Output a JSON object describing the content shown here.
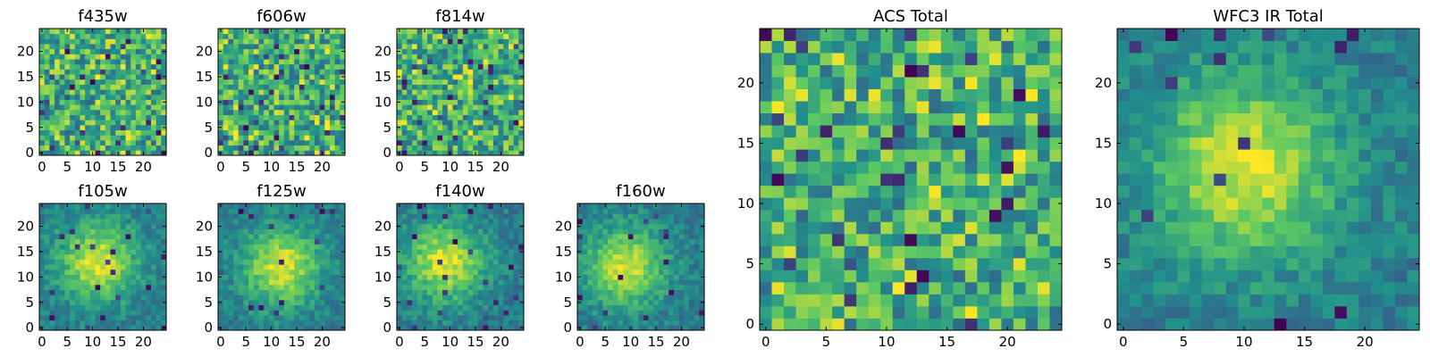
{
  "figure": {
    "colormap": "viridis",
    "colormap_stops": [
      "#440154",
      "#3b528b",
      "#21918c",
      "#5ec962",
      "#fde725"
    ]
  },
  "chart_data": [
    {
      "type": "heatmap",
      "title": "f435w",
      "grid_size": 25,
      "xlim": [
        0,
        24
      ],
      "ylim": [
        0,
        24
      ],
      "xticks": [
        0,
        5,
        10,
        15,
        20
      ],
      "yticks": [
        0,
        5,
        10,
        15,
        20
      ],
      "pattern": "noise",
      "seed": 11
    },
    {
      "type": "heatmap",
      "title": "f606w",
      "grid_size": 25,
      "xlim": [
        0,
        24
      ],
      "ylim": [
        0,
        24
      ],
      "xticks": [
        0,
        5,
        10,
        15,
        20
      ],
      "yticks": [
        0,
        5,
        10,
        15,
        20
      ],
      "pattern": "noise",
      "seed": 23
    },
    {
      "type": "heatmap",
      "title": "f814w",
      "grid_size": 25,
      "xlim": [
        0,
        24
      ],
      "ylim": [
        0,
        24
      ],
      "xticks": [
        0,
        5,
        10,
        15,
        20
      ],
      "yticks": [
        0,
        5,
        10,
        15,
        20
      ],
      "pattern": "noise",
      "seed": 37
    },
    {
      "type": "heatmap",
      "title": "f105w",
      "grid_size": 25,
      "xlim": [
        0,
        24
      ],
      "ylim": [
        0,
        24
      ],
      "xticks": [
        0,
        5,
        10,
        15,
        20
      ],
      "yticks": [
        0,
        5,
        10,
        15,
        20
      ],
      "pattern": "blob",
      "blob_center": [
        11,
        13
      ],
      "seed": 41
    },
    {
      "type": "heatmap",
      "title": "f125w",
      "grid_size": 25,
      "xlim": [
        0,
        24
      ],
      "ylim": [
        0,
        24
      ],
      "xticks": [
        0,
        5,
        10,
        15,
        20
      ],
      "yticks": [
        0,
        5,
        10,
        15,
        20
      ],
      "pattern": "blob",
      "blob_center": [
        12,
        12
      ],
      "seed": 53
    },
    {
      "type": "heatmap",
      "title": "f140w",
      "grid_size": 25,
      "xlim": [
        0,
        24
      ],
      "ylim": [
        0,
        24
      ],
      "xticks": [
        0,
        5,
        10,
        15,
        20
      ],
      "yticks": [
        0,
        5,
        10,
        15,
        20
      ],
      "pattern": "blob",
      "blob_center": [
        9,
        13
      ],
      "seed": 67
    },
    {
      "type": "heatmap",
      "title": "f160w",
      "grid_size": 25,
      "xlim": [
        0,
        24
      ],
      "ylim": [
        0,
        24
      ],
      "xticks": [
        0,
        5,
        10,
        15,
        20
      ],
      "yticks": [
        0,
        5,
        10,
        15,
        20
      ],
      "pattern": "blob",
      "blob_center": [
        9,
        12
      ],
      "seed": 79
    },
    {
      "type": "heatmap",
      "title": "ACS Total",
      "grid_size": 25,
      "xlim": [
        0,
        24
      ],
      "ylim": [
        0,
        24
      ],
      "xticks": [
        0,
        5,
        10,
        15,
        20
      ],
      "yticks": [
        0,
        5,
        10,
        15,
        20
      ],
      "pattern": "noise",
      "seed": 89
    },
    {
      "type": "heatmap",
      "title": "WFC3 IR Total",
      "grid_size": 25,
      "xlim": [
        0,
        24
      ],
      "ylim": [
        0,
        24
      ],
      "xticks": [
        0,
        5,
        10,
        15,
        20
      ],
      "yticks": [
        0,
        5,
        10,
        15,
        20
      ],
      "pattern": "blob",
      "blob_center": [
        10,
        13
      ],
      "seed": 97
    }
  ]
}
